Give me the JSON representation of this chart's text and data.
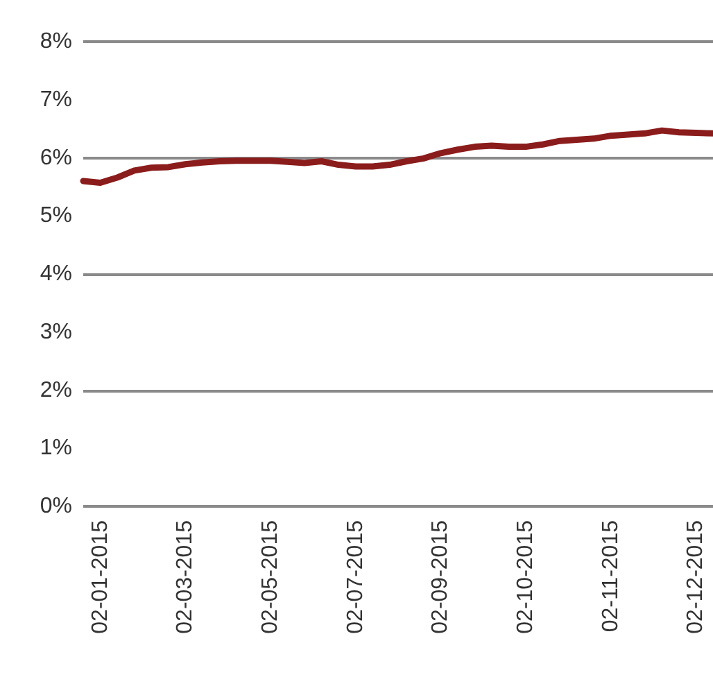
{
  "chart_data": {
    "type": "line",
    "categories": [
      null,
      "02-01-2015",
      null,
      null,
      null,
      null,
      "02-03-2015",
      null,
      null,
      null,
      null,
      "02-05-2015",
      null,
      null,
      null,
      null,
      "02-07-2015",
      null,
      null,
      null,
      null,
      "02-09-2015",
      null,
      null,
      null,
      null,
      "02-10-2015",
      null,
      null,
      null,
      null,
      "02-11-2015",
      null,
      null,
      null,
      null,
      "02-12-2015",
      null
    ],
    "series": [
      {
        "color": "#8b1c1c",
        "values": [
          5.6,
          5.57,
          5.66,
          5.78,
          5.83,
          5.84,
          5.89,
          5.92,
          5.94,
          5.95,
          5.95,
          5.95,
          5.93,
          5.91,
          5.94,
          5.88,
          5.85,
          5.85,
          5.88,
          5.94,
          5.99,
          6.08,
          6.14,
          6.19,
          6.21,
          6.19,
          6.19,
          6.23,
          6.29,
          6.31,
          6.33,
          6.38,
          6.4,
          6.42,
          6.47,
          6.44,
          6.43,
          6.42
        ]
      }
    ],
    "ylim": [
      0,
      8
    ],
    "yticks": [
      {
        "value": 0,
        "label": "0%"
      },
      {
        "value": 1,
        "label": "1%"
      },
      {
        "value": 2,
        "label": "2%"
      },
      {
        "value": 3,
        "label": "3%"
      },
      {
        "value": 4,
        "label": "4%"
      },
      {
        "value": 5,
        "label": "5%"
      },
      {
        "value": 6,
        "label": "6%"
      },
      {
        "value": 7,
        "label": "7%"
      },
      {
        "value": 8,
        "label": "8%"
      }
    ],
    "grid": "y",
    "marker": "none",
    "line_style": "solid"
  }
}
